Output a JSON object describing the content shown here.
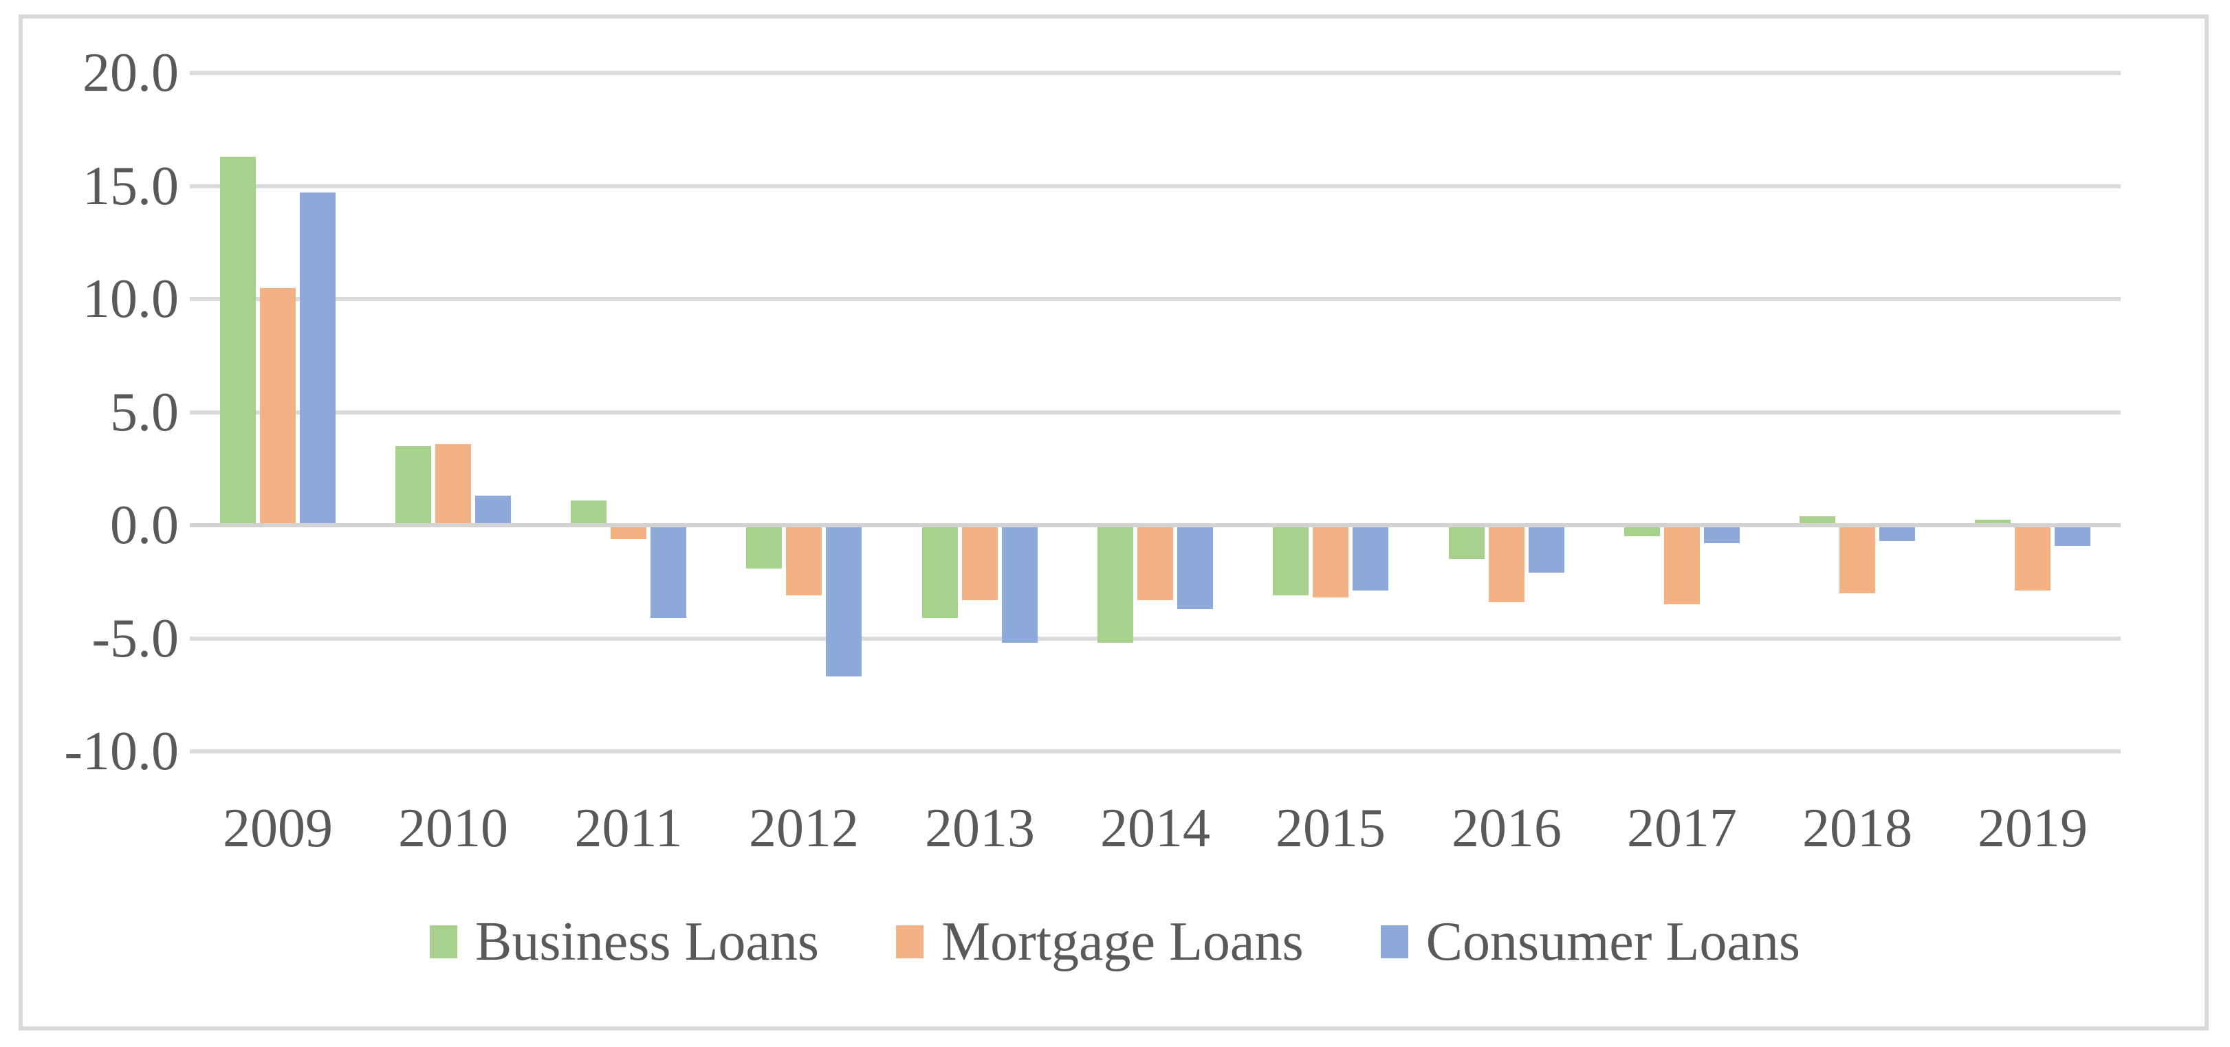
{
  "chart_data": {
    "type": "bar",
    "title": "",
    "xlabel": "",
    "ylabel": "",
    "categories": [
      "2009",
      "2010",
      "2011",
      "2012",
      "2013",
      "2014",
      "2015",
      "2016",
      "2017",
      "2018",
      "2019"
    ],
    "series": [
      {
        "name": "Business Loans",
        "color": "#A9D18E",
        "values": [
          16.3,
          3.5,
          1.1,
          -1.9,
          -4.1,
          -5.2,
          -3.1,
          -1.5,
          -0.5,
          0.4,
          0.1
        ]
      },
      {
        "name": "Mortgage Loans",
        "color": "#F4B183",
        "values": [
          10.5,
          3.6,
          -0.6,
          -3.1,
          -3.3,
          -3.3,
          -3.2,
          -3.4,
          -3.5,
          -3.0,
          -2.9
        ]
      },
      {
        "name": "Consumer Loans",
        "color": "#8EAADB",
        "values": [
          14.7,
          1.3,
          -4.1,
          -6.7,
          -5.2,
          -3.7,
          -2.9,
          -2.1,
          -0.8,
          -0.7,
          -0.9
        ]
      }
    ],
    "y_axis": {
      "min": -10,
      "max": 20,
      "step": 5,
      "tick_labels": [
        "20.0",
        "15.0",
        "10.0",
        "5.0",
        "0.0",
        "-5.0",
        "-10.0"
      ]
    },
    "grid": true,
    "legend_position": "bottom"
  },
  "style_colors": {
    "text": "#595959",
    "gridline": "#DBDBDB",
    "zero_line": "#D3D3D3",
    "border": "#D9D9D9",
    "background": "#FFFFFF"
  }
}
